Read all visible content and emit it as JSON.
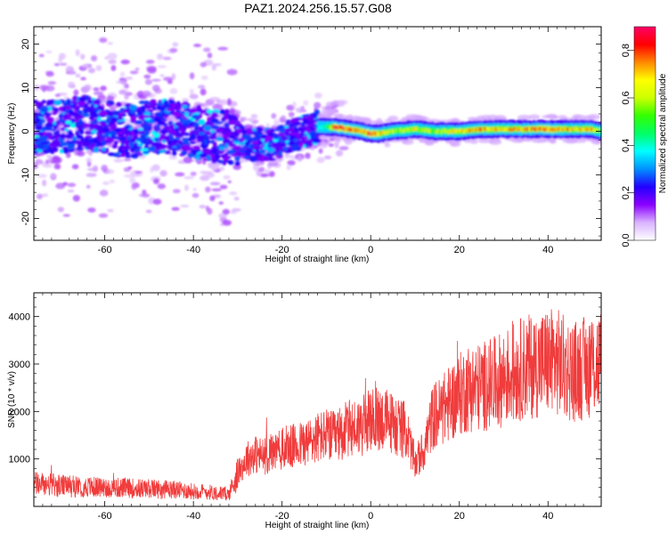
{
  "figure_title": "PAZ1.2024.256.15.57.G08",
  "chart_data": [
    {
      "type": "heatmap",
      "xlabel": "Height of straight line (km)",
      "ylabel": "Frequency (Hz)",
      "xlim": [
        -76,
        52
      ],
      "ylim": [
        -25,
        24
      ],
      "xticks": [
        -60,
        -40,
        -20,
        0,
        20,
        40
      ],
      "yticks": [
        -20,
        -10,
        0,
        10,
        20
      ],
      "colorbar": {
        "label": "Normalized spectral amplitude",
        "range": [
          0,
          0.9
        ],
        "ticks": [
          0.0,
          0.2,
          0.4,
          0.6,
          0.8
        ],
        "colormap": [
          "#ffffff",
          "#d9b3ff",
          "#8b00ff",
          "#2200ff",
          "#0090ff",
          "#00ffff",
          "#00ff66",
          "#33ff00",
          "#ccff00",
          "#ffff00",
          "#ff8800",
          "#ff0000",
          "#ff0066"
        ]
      },
      "ridge": {
        "x": [
          -76,
          -70,
          -65,
          -60,
          -55,
          -50,
          -45,
          -40,
          -35,
          -30,
          -27,
          -25,
          -22,
          -20,
          -18,
          -15,
          -12,
          -10,
          -8,
          -5,
          -2,
          0,
          2,
          5,
          10,
          15,
          20,
          25,
          30,
          35,
          40,
          45,
          50,
          52
        ],
        "y": [
          1,
          1,
          2,
          1,
          0,
          1,
          1,
          0,
          -1,
          -2,
          -3,
          -3,
          -3,
          -2,
          -1,
          0,
          1,
          1,
          1,
          0.5,
          0,
          -0.5,
          -0.5,
          0,
          0.5,
          0,
          0,
          0.5,
          0.5,
          0.5,
          0.5,
          0.5,
          0.5,
          0
        ],
        "amplitude": [
          0.2,
          0.25,
          0.25,
          0.25,
          0.2,
          0.25,
          0.25,
          0.2,
          0.2,
          0.2,
          0.25,
          0.3,
          0.25,
          0.2,
          0.2,
          0.25,
          0.35,
          0.45,
          0.85,
          0.8,
          0.75,
          0.85,
          0.75,
          0.6,
          0.65,
          0.6,
          0.7,
          0.75,
          0.7,
          0.75,
          0.8,
          0.7,
          0.75,
          0.5
        ]
      }
    },
    {
      "type": "line",
      "xlabel": "Height of straight line (km)",
      "ylabel": "SNR (10 * v/v)",
      "xlim": [
        -76,
        52
      ],
      "ylim": [
        0,
        4500
      ],
      "xticks": [
        -60,
        -40,
        -20,
        0,
        20,
        40
      ],
      "yticks": [
        1000,
        2000,
        3000,
        4000
      ],
      "color": "#f03c3c",
      "series": [
        {
          "x": [
            -76,
            -72,
            -68,
            -64,
            -60,
            -56,
            -52,
            -48,
            -44,
            -40,
            -36,
            -32,
            -30,
            -28,
            -26,
            -24,
            -22,
            -20,
            -18,
            -16,
            -14,
            -12,
            -10,
            -8,
            -6,
            -4,
            -2,
            0,
            2,
            4,
            6,
            8,
            10,
            12,
            14,
            16,
            18,
            20,
            22,
            24,
            26,
            28,
            30,
            32,
            34,
            36,
            38,
            40,
            42,
            44,
            46,
            48,
            50,
            52
          ],
          "values": [
            480,
            450,
            420,
            410,
            400,
            390,
            380,
            370,
            350,
            320,
            300,
            260,
            700,
            1000,
            1100,
            1050,
            1150,
            1200,
            1250,
            1300,
            1350,
            1450,
            1500,
            1450,
            1600,
            1650,
            1700,
            1800,
            1850,
            1800,
            1700,
            1600,
            900,
            1200,
            1900,
            2000,
            2200,
            2350,
            2500,
            2500,
            2550,
            2600,
            2700,
            2800,
            2900,
            2950,
            3000,
            3050,
            3050,
            2900,
            2850,
            2900,
            3000,
            3050
          ]
        }
      ]
    }
  ]
}
